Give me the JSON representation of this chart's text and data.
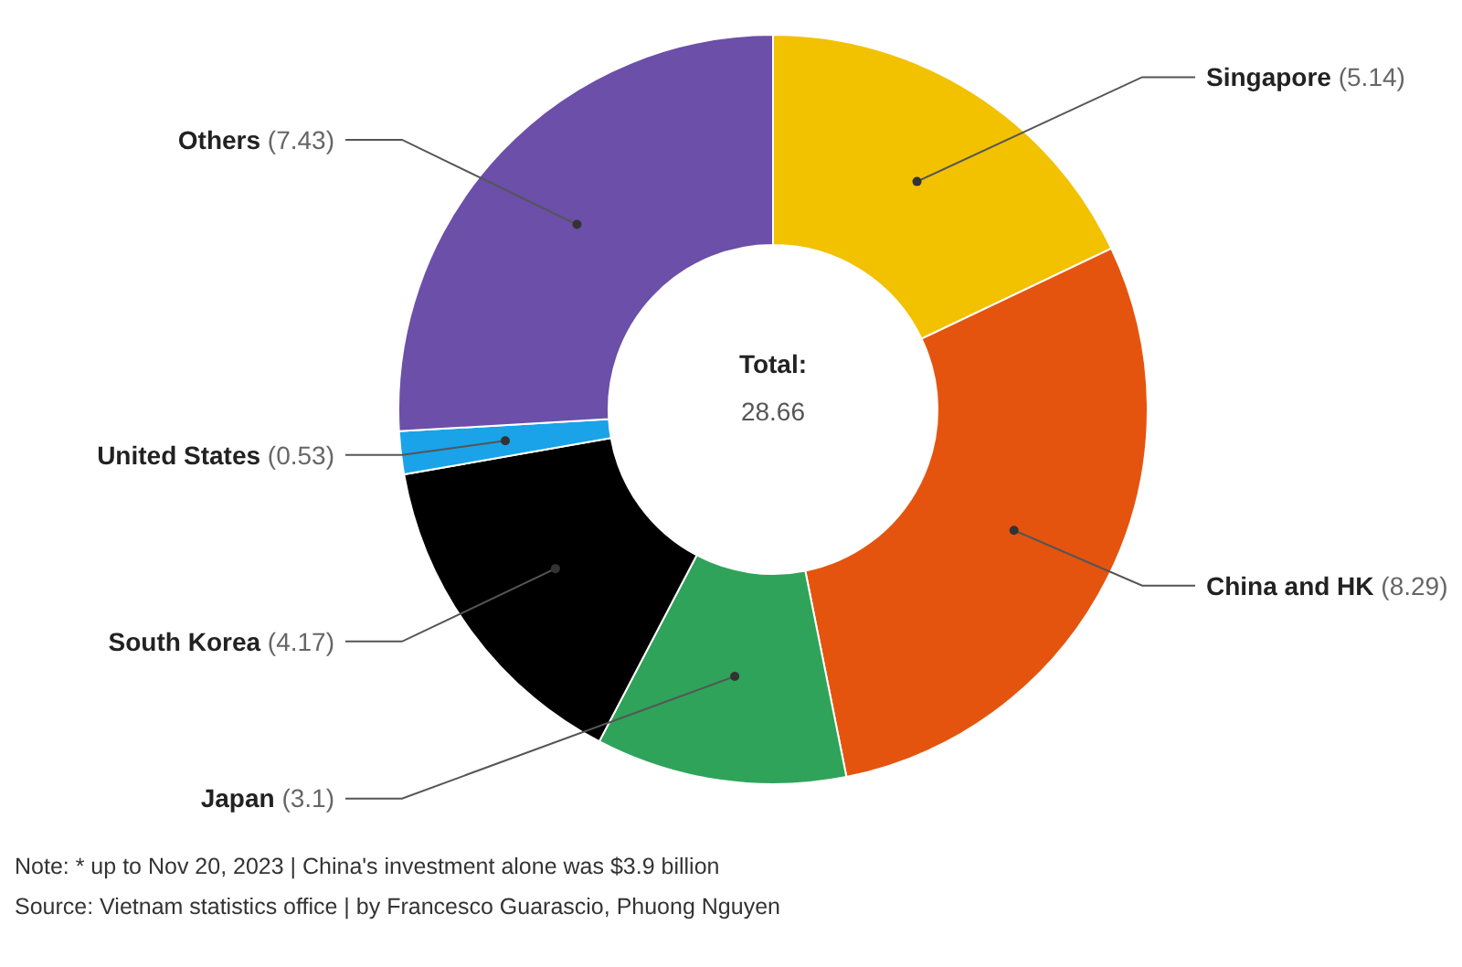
{
  "chart_data": {
    "type": "donut",
    "categories": [
      "Singapore",
      "China and HK",
      "Japan",
      "South Korea",
      "United States",
      "Others"
    ],
    "values": [
      5.14,
      8.29,
      3.1,
      4.17,
      0.53,
      7.43
    ],
    "colors": [
      "#f2c100",
      "#e5540f",
      "#2fa35a",
      "#000000",
      "#1aa3e8",
      "#6b4fa8"
    ],
    "value_labels": [
      "(5.14)",
      "(8.29)",
      "(3.1)",
      "(4.17)",
      "(0.53)",
      "(7.43)"
    ],
    "annotations": [
      "Total:",
      "28.66",
      "Note: * up to Nov 20, 2023 | China's investment alone was $3.9 billion",
      "Source: Vietnam statistics office | by Francesco Guarascio, Phuong Nguyen"
    ]
  }
}
